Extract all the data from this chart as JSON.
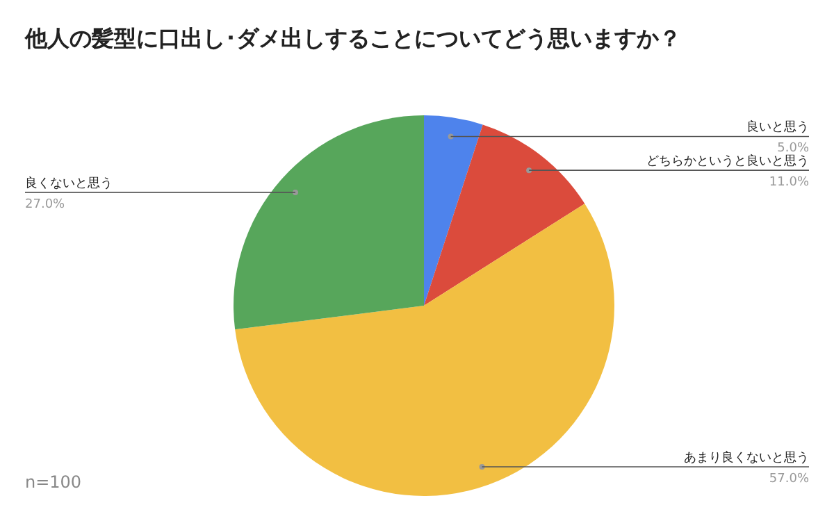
{
  "chart_data": {
    "type": "pie",
    "title": "他人の髪型に口出し･ダメ出しすることについてどう思いますか？",
    "categories": [
      "良いと思う",
      "どちらかというと良いと思う",
      "あまり良くないと思う",
      "良くないと思う"
    ],
    "values": [
      5,
      11,
      57,
      27
    ],
    "value_labels": [
      "5.0%",
      "11.0%",
      "57.0%",
      "27.0%"
    ],
    "colors": [
      "#4e83ec",
      "#db4b3c",
      "#f2bf42",
      "#57a65b"
    ],
    "annotations": [
      "n=100"
    ],
    "legend": false
  }
}
